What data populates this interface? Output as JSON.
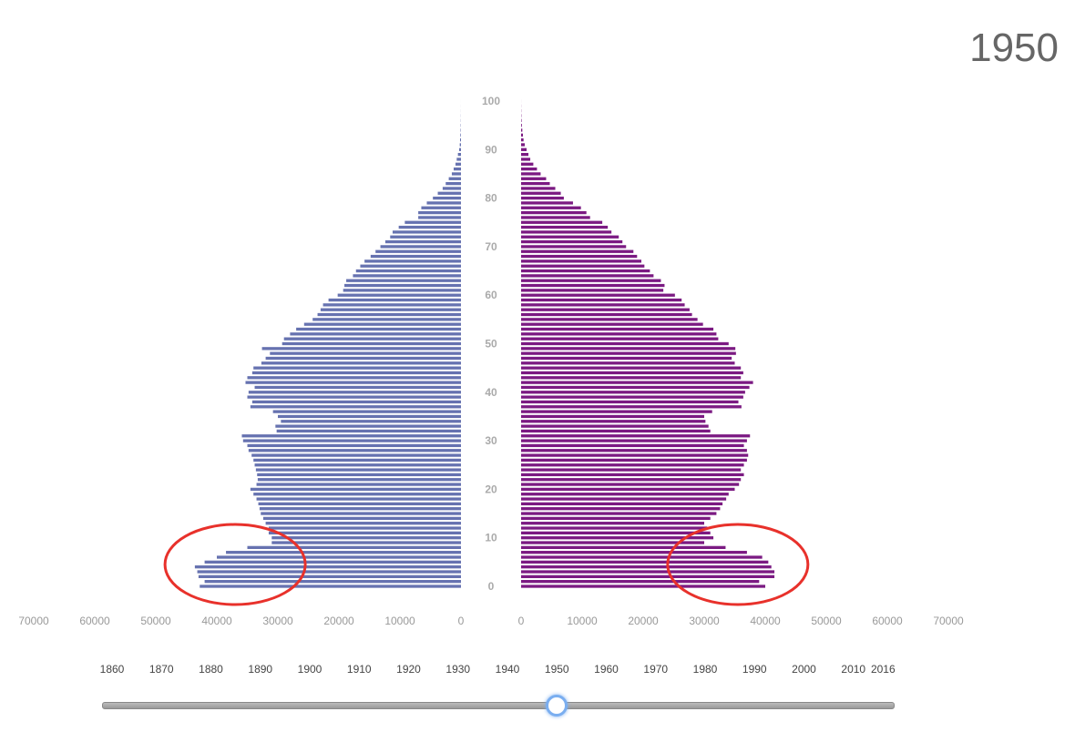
{
  "header": {
    "year": "1950"
  },
  "slider": {
    "years": [
      "1860",
      "1870",
      "1880",
      "1890",
      "1900",
      "1910",
      "1920",
      "1930",
      "1940",
      "1950",
      "1960",
      "1970",
      "1980",
      "1990",
      "2000",
      "2010",
      "2016"
    ],
    "value": 1950
  },
  "chart_data": {
    "type": "bar",
    "orientation": "horizontal",
    "layout": "population-pyramid",
    "year": 1950,
    "y_axis": {
      "label": "",
      "range": [
        0,
        100
      ],
      "ticks": [
        0,
        10,
        20,
        30,
        40,
        50,
        60,
        70,
        80,
        90,
        100
      ]
    },
    "x_axis": {
      "range": [
        0,
        70000
      ],
      "ticks": [
        0,
        10000,
        20000,
        30000,
        40000,
        50000,
        60000,
        70000
      ]
    },
    "ages": [
      0,
      1,
      2,
      3,
      4,
      5,
      6,
      7,
      8,
      9,
      10,
      11,
      12,
      13,
      14,
      15,
      16,
      17,
      18,
      19,
      20,
      21,
      22,
      23,
      24,
      25,
      26,
      27,
      28,
      29,
      30,
      31,
      32,
      33,
      34,
      35,
      36,
      37,
      38,
      39,
      40,
      41,
      42,
      43,
      44,
      45,
      46,
      47,
      48,
      49,
      50,
      51,
      52,
      53,
      54,
      55,
      56,
      57,
      58,
      59,
      60,
      61,
      62,
      63,
      64,
      65,
      66,
      67,
      68,
      69,
      70,
      71,
      72,
      73,
      74,
      75,
      76,
      77,
      78,
      79,
      80,
      81,
      82,
      83,
      84,
      85,
      86,
      87,
      88,
      89,
      90,
      91,
      92,
      93,
      94,
      95,
      96,
      97,
      98,
      99,
      100
    ],
    "series": [
      {
        "side": "left",
        "color": "#6672b0",
        "values": [
          42800,
          42000,
          43000,
          43200,
          43600,
          42000,
          40000,
          38500,
          35000,
          31000,
          31000,
          31500,
          31500,
          32000,
          32400,
          32800,
          33000,
          33200,
          33500,
          34000,
          34500,
          33500,
          33300,
          33400,
          33600,
          33800,
          34000,
          34300,
          34800,
          35000,
          35700,
          35900,
          30200,
          30400,
          29500,
          30000,
          30800,
          34500,
          34200,
          35000,
          34800,
          33800,
          35300,
          35000,
          34200,
          34000,
          32700,
          32000,
          31300,
          32600,
          29300,
          29000,
          28000,
          27000,
          25700,
          24300,
          23500,
          23000,
          22600,
          21700,
          20200,
          19300,
          19100,
          18800,
          17700,
          17200,
          16500,
          15800,
          14800,
          14000,
          13200,
          12400,
          11600,
          11200,
          10200,
          9200,
          7000,
          7000,
          6500,
          5600,
          4600,
          3800,
          3000,
          2500,
          2000,
          1500,
          1200,
          900,
          700,
          500,
          300,
          200,
          150,
          100,
          70,
          50,
          30,
          20,
          10,
          5,
          2
        ]
      },
      {
        "side": "right",
        "color": "#7b1a82",
        "values": [
          40000,
          39000,
          41500,
          41500,
          41000,
          40500,
          39500,
          37000,
          33500,
          30000,
          31500,
          31000,
          30500,
          30000,
          31000,
          32000,
          32600,
          33000,
          33600,
          34000,
          35000,
          35700,
          36000,
          36500,
          36000,
          36500,
          37000,
          37200,
          37000,
          36500,
          37000,
          37500,
          31000,
          30700,
          30200,
          30000,
          31300,
          36100,
          35600,
          36400,
          36700,
          37400,
          38000,
          36000,
          36400,
          36000,
          35000,
          34500,
          35200,
          35100,
          34000,
          32300,
          32000,
          31500,
          29800,
          28900,
          28000,
          27600,
          26800,
          26300,
          25200,
          23300,
          23500,
          22900,
          21700,
          21100,
          20200,
          19700,
          19000,
          18400,
          17200,
          16600,
          16000,
          14800,
          14200,
          13300,
          11300,
          10700,
          9800,
          8500,
          7000,
          6500,
          5600,
          4700,
          4100,
          3200,
          2600,
          2000,
          1500,
          1200,
          900,
          600,
          400,
          300,
          200,
          120,
          80,
          50,
          30,
          15,
          5
        ]
      }
    ],
    "annotations": [
      {
        "shape": "ellipse",
        "color": "#e8312b",
        "side": "left",
        "center_x": 37000,
        "center_age": 4.5
      },
      {
        "shape": "ellipse",
        "color": "#e8312b",
        "side": "right",
        "center_x": 35500,
        "center_age": 4.5
      }
    ]
  }
}
